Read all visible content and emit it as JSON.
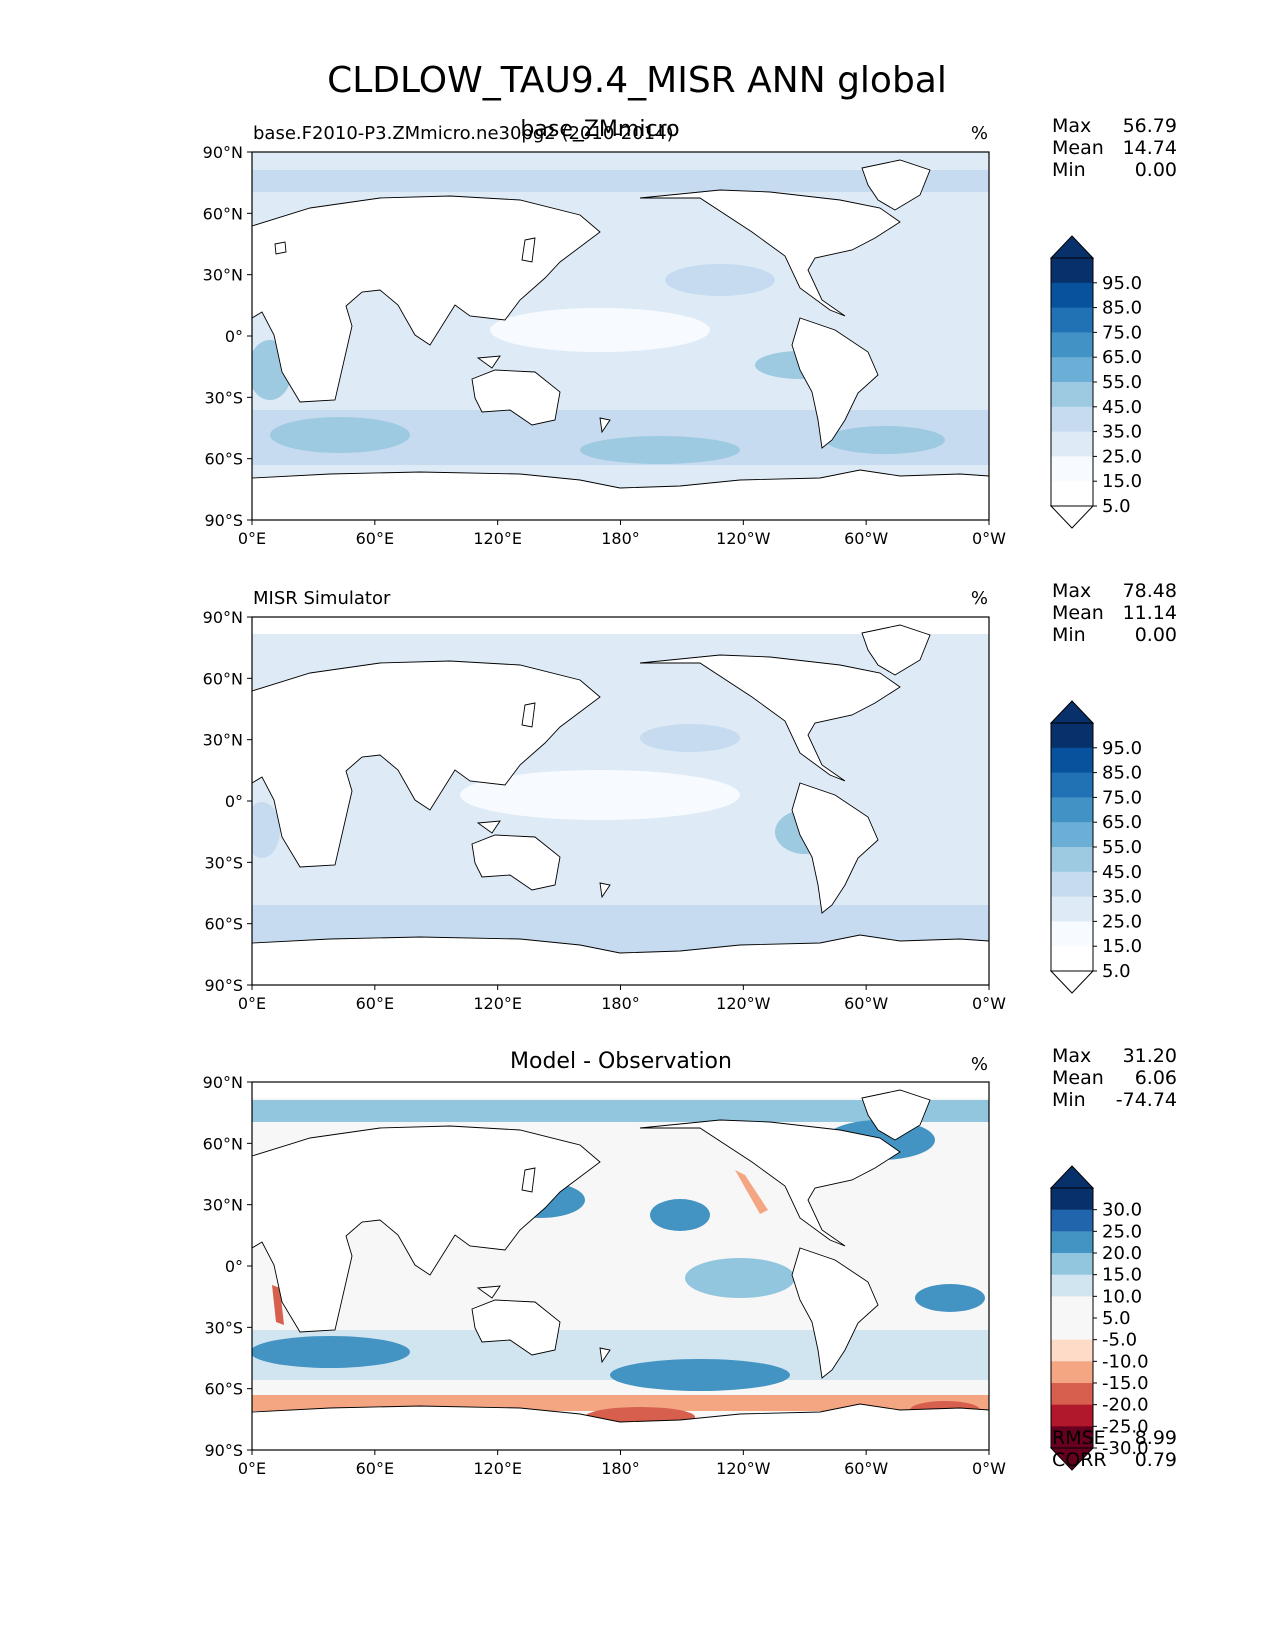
{
  "figure": {
    "title": "CLDLOW_TAU9.4_MISR ANN global",
    "units_symbol": "%"
  },
  "chart_data": [
    {
      "type": "heatmap",
      "kind": "map",
      "panel": "test",
      "title_left": "base.F2010-P3.ZMmicro.ne30pg2 (2010-2014)",
      "title_center": "base_ZMmicro",
      "units": "%",
      "stats": {
        "max": "56.79",
        "mean": "14.74",
        "min": "0.00",
        "max_label": "Max",
        "mean_label": "Mean",
        "min_label": "Min"
      },
      "lat_ticks": [
        "90°N",
        "60°N",
        "30°N",
        "0°",
        "30°S",
        "60°S",
        "90°S"
      ],
      "lon_ticks": [
        "0°E",
        "60°E",
        "120°E",
        "180°",
        "120°W",
        "60°W",
        "0°W"
      ],
      "lat_range": [
        -90,
        90
      ],
      "lon_range": [
        0,
        360
      ],
      "colorbar": {
        "labels": [
          "95.0",
          "85.0",
          "75.0",
          "65.0",
          "55.0",
          "45.0",
          "35.0",
          "25.0",
          "15.0",
          "5.0"
        ],
        "colors": [
          "#08306b",
          "#08519c",
          "#2171b5",
          "#4292c6",
          "#6baed6",
          "#9ecae1",
          "#c6dbef",
          "#deebf7",
          "#f7fbff",
          "#ffffff"
        ]
      }
    },
    {
      "type": "heatmap",
      "kind": "map",
      "panel": "reference",
      "title_left": "MISR Simulator",
      "units": "%",
      "stats": {
        "max": "78.48",
        "mean": "11.14",
        "min": "0.00",
        "max_label": "Max",
        "mean_label": "Mean",
        "min_label": "Min"
      },
      "lat_ticks": [
        "90°N",
        "60°N",
        "30°N",
        "0°",
        "30°S",
        "60°S",
        "90°S"
      ],
      "lon_ticks": [
        "0°E",
        "60°E",
        "120°E",
        "180°",
        "120°W",
        "60°W",
        "0°W"
      ],
      "lat_range": [
        -90,
        90
      ],
      "lon_range": [
        0,
        360
      ],
      "colorbar": {
        "labels": [
          "95.0",
          "85.0",
          "75.0",
          "65.0",
          "55.0",
          "45.0",
          "35.0",
          "25.0",
          "15.0",
          "5.0"
        ],
        "colors": [
          "#08306b",
          "#08519c",
          "#2171b5",
          "#4292c6",
          "#6baed6",
          "#9ecae1",
          "#c6dbef",
          "#deebf7",
          "#f7fbff",
          "#ffffff"
        ]
      }
    },
    {
      "type": "heatmap",
      "kind": "map",
      "panel": "difference",
      "title_center": "Model - Observation",
      "units": "%",
      "stats": {
        "max": "31.20",
        "mean": "6.06",
        "min": "-74.74",
        "max_label": "Max",
        "mean_label": "Mean",
        "min_label": "Min"
      },
      "metrics": {
        "rmse_label": "RMSE",
        "rmse": "8.99",
        "corr_label": "CORR",
        "corr": "0.79"
      },
      "lat_ticks": [
        "90°N",
        "60°N",
        "30°N",
        "0°",
        "30°S",
        "60°S",
        "90°S"
      ],
      "lon_ticks": [
        "0°E",
        "60°E",
        "120°E",
        "180°",
        "120°W",
        "60°W",
        "0°W"
      ],
      "lat_range": [
        -90,
        90
      ],
      "lon_range": [
        0,
        360
      ],
      "colorbar": {
        "labels": [
          "30.0",
          "25.0",
          "20.0",
          "15.0",
          "10.0",
          "5.0",
          "-5.0",
          "-10.0",
          "-15.0",
          "-20.0",
          "-25.0",
          "-30.0"
        ],
        "colors": [
          "#08306b",
          "#2166ac",
          "#4393c3",
          "#92c5de",
          "#d1e5f0",
          "#f7f7f7",
          "#f7f7f7",
          "#fddbc7",
          "#f4a582",
          "#d6604d",
          "#b2182b",
          "#67001f"
        ]
      }
    }
  ]
}
